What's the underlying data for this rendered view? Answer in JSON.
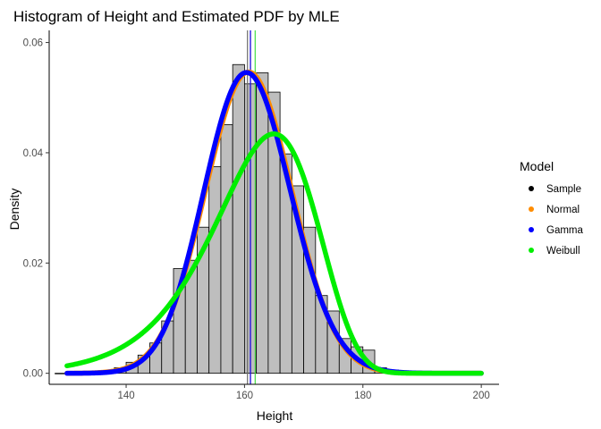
{
  "chart_data": {
    "type": "histogram",
    "title": "Histogram of Height and Estimated PDF by MLE",
    "xlabel": "Height",
    "ylabel": "Density",
    "xlim": [
      127,
      203
    ],
    "ylim": [
      -0.002,
      0.0622
    ],
    "x_ticks": [
      140,
      160,
      180,
      200
    ],
    "y_ticks": [
      0.0,
      0.02,
      0.04,
      0.06
    ],
    "x_tick_labels": [
      "140",
      "160",
      "180",
      "200"
    ],
    "y_tick_labels": [
      "0.00",
      "0.02",
      "0.04",
      "0.06"
    ],
    "grid": false,
    "legend_position": "right",
    "histogram": {
      "bin_width": 2,
      "fill": "#bebebe",
      "outline": "#000000",
      "bins": [
        {
          "start": 128,
          "value": 0.0
        },
        {
          "start": 130,
          "value": 0.0
        },
        {
          "start": 132,
          "value": 0.0
        },
        {
          "start": 134,
          "value": 0.0
        },
        {
          "start": 136,
          "value": 0.0002
        },
        {
          "start": 138,
          "value": 0.001
        },
        {
          "start": 140,
          "value": 0.002
        },
        {
          "start": 142,
          "value": 0.0033
        },
        {
          "start": 144,
          "value": 0.0055
        },
        {
          "start": 146,
          "value": 0.0095
        },
        {
          "start": 148,
          "value": 0.019
        },
        {
          "start": 150,
          "value": 0.0205
        },
        {
          "start": 152,
          "value": 0.0265
        },
        {
          "start": 154,
          "value": 0.0375
        },
        {
          "start": 156,
          "value": 0.0451
        },
        {
          "start": 158,
          "value": 0.056
        },
        {
          "start": 160,
          "value": 0.0525
        },
        {
          "start": 162,
          "value": 0.0545
        },
        {
          "start": 164,
          "value": 0.051
        },
        {
          "start": 166,
          "value": 0.0398
        },
        {
          "start": 168,
          "value": 0.034
        },
        {
          "start": 170,
          "value": 0.0265
        },
        {
          "start": 172,
          "value": 0.0141
        },
        {
          "start": 174,
          "value": 0.0113
        },
        {
          "start": 176,
          "value": 0.0063
        },
        {
          "start": 178,
          "value": 0.0048
        },
        {
          "start": 180,
          "value": 0.0042
        },
        {
          "start": 182,
          "value": 0.001
        },
        {
          "start": 184,
          "value": 0.0006
        },
        {
          "start": 186,
          "value": 0.0003
        },
        {
          "start": 188,
          "value": 0.0003
        },
        {
          "start": 190,
          "value": 0.0
        }
      ]
    },
    "vertical_lines": [
      {
        "x": 160.5,
        "color": "#696969"
      },
      {
        "x": 161.0,
        "color": "#ff8c00"
      },
      {
        "x": 161.0,
        "color": "#0000ff"
      },
      {
        "x": 161.8,
        "color": "#44dd44"
      }
    ],
    "series": [
      {
        "name": "Normal",
        "color": "#ff8c00",
        "dist": "normal",
        "mean": 160.7,
        "sd": 7.3
      },
      {
        "name": "Gamma",
        "color": "#0000ff",
        "dist": "gamma",
        "shape": 482,
        "rate": 3.0
      },
      {
        "name": "Weibull",
        "color": "#00ee00",
        "dist": "weibull",
        "shape": 19.5,
        "scale": 165.4
      }
    ],
    "curve_x_range": [
      130,
      200
    ],
    "legend": {
      "title": "Model",
      "entries": [
        {
          "label": "Sample",
          "color": "#000000"
        },
        {
          "label": "Normal",
          "color": "#ff8c00"
        },
        {
          "label": "Gamma",
          "color": "#0000ff"
        },
        {
          "label": "Weibull",
          "color": "#00ee00"
        }
      ]
    }
  }
}
